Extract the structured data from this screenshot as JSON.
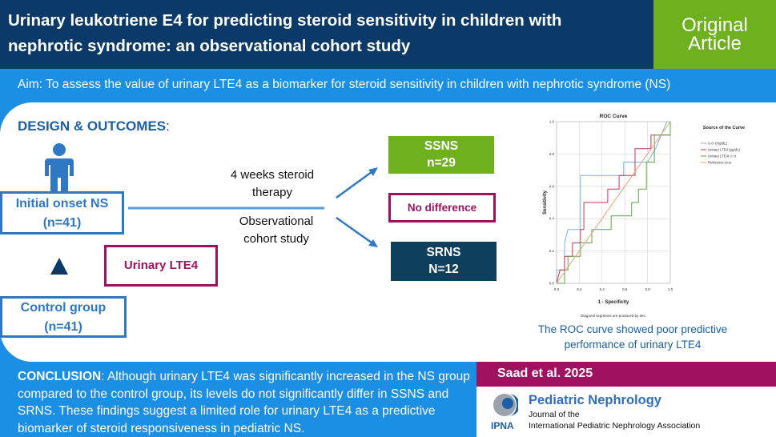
{
  "header": {
    "title": "Urinary leukotriene E4 for predicting steroid sensitivity in children with nephrotic syndrome: an observational cohort study",
    "badge_line1": "Original",
    "badge_line2": "Article"
  },
  "aim": "Aim: To assess the value of urinary LTE4 as a biomarker for steroid sensitivity in children with nephrotic syndrome (NS)",
  "design": {
    "heading": "DESIGN & OUTCOMES",
    "colon": ":",
    "ns_box": {
      "line1": "Initial onset NS",
      "line2": "(n=41)"
    },
    "control_box": {
      "line1": "Control group",
      "line2": "(n=41)"
    },
    "lte4_box": "Urinary LTE4",
    "arrow_top": {
      "line1": "4 weeks steroid",
      "line2": "therapy"
    },
    "arrow_bottom": {
      "line1": "Observational",
      "line2": "cohort study"
    },
    "ssns": {
      "line1": "SSNS",
      "line2": "n=29"
    },
    "no_diff": "No difference",
    "srns": {
      "line1": "SRNS",
      "line2": "N=12"
    }
  },
  "chart_caption": {
    "line1": "The ROC curve showed poor predictive",
    "line2": "performance of urinary LTE4"
  },
  "chart_data": {
    "type": "line",
    "title": "ROC Curve",
    "xlabel": "1 - Specificity",
    "ylabel": "Sensitivity",
    "xlim": [
      0,
      1
    ],
    "ylim": [
      0,
      1
    ],
    "ticks": [
      "0.0",
      "0.2",
      "0.4",
      "0.6",
      "0.8",
      "1.0"
    ],
    "grid": true,
    "legend_title": "Source of the Curve",
    "legend_position": "right",
    "footnote": "Diagonal segments are produced by ties.",
    "series": [
      {
        "name": "U cr (mg/dL)",
        "color": "#7fb0e0",
        "points": [
          [
            0,
            0
          ],
          [
            0,
            0.083
          ],
          [
            0.07,
            0.083
          ],
          [
            0.07,
            0.25
          ],
          [
            0.1,
            0.333
          ],
          [
            0.21,
            0.333
          ],
          [
            0.21,
            0.667
          ],
          [
            0.59,
            0.667
          ],
          [
            0.59,
            0.75
          ],
          [
            0.8,
            0.75
          ],
          [
            0.87,
            0.833
          ],
          [
            0.92,
            0.917
          ],
          [
            0.97,
            1
          ],
          [
            1,
            1
          ]
        ]
      },
      {
        "name": "Urinary LTE4 (pg/dL)",
        "color": "#c8325a",
        "points": [
          [
            0,
            0
          ],
          [
            0.03,
            0.083
          ],
          [
            0.07,
            0.083
          ],
          [
            0.07,
            0.167
          ],
          [
            0.14,
            0.167
          ],
          [
            0.14,
            0.25
          ],
          [
            0.21,
            0.25
          ],
          [
            0.21,
            0.333
          ],
          [
            0.24,
            0.333
          ],
          [
            0.24,
            0.5
          ],
          [
            0.45,
            0.5
          ],
          [
            0.45,
            0.583
          ],
          [
            0.55,
            0.583
          ],
          [
            0.55,
            0.667
          ],
          [
            0.69,
            0.667
          ],
          [
            0.69,
            0.833
          ],
          [
            0.83,
            0.833
          ],
          [
            0.83,
            0.917
          ],
          [
            1,
            0.917
          ],
          [
            1,
            1
          ]
        ]
      },
      {
        "name": "Urinary LTE4/ U cr",
        "color": "#5aa845",
        "points": [
          [
            0,
            0
          ],
          [
            0.07,
            0
          ],
          [
            0.07,
            0.083
          ],
          [
            0.1,
            0.083
          ],
          [
            0.1,
            0.167
          ],
          [
            0.21,
            0.167
          ],
          [
            0.21,
            0.25
          ],
          [
            0.31,
            0.25
          ],
          [
            0.31,
            0.333
          ],
          [
            0.48,
            0.333
          ],
          [
            0.48,
            0.417
          ],
          [
            0.66,
            0.417
          ],
          [
            0.66,
            0.5
          ],
          [
            0.72,
            0.5
          ],
          [
            0.72,
            0.583
          ],
          [
            0.79,
            0.583
          ],
          [
            0.79,
            0.75
          ],
          [
            0.86,
            0.75
          ],
          [
            0.86,
            0.917
          ],
          [
            1,
            0.917
          ],
          [
            1,
            1
          ]
        ]
      },
      {
        "name": "Reference Line",
        "color": "#f0a070",
        "points": [
          [
            0,
            0
          ],
          [
            1,
            1
          ]
        ]
      }
    ]
  },
  "conclusion": {
    "label": "CONCLUSION",
    "text": ": Although urinary LTE4 was significantly increased in the NS group compared to the control group, its levels do not significantly differ in SSNS and SRNS. These findings suggest a limited role for urinary LTE4 as a predictive biomarker of steroid responsiveness in pediatric NS."
  },
  "citation": "Saad et al. 2025",
  "journal": {
    "name": "Pediatric Nephrology",
    "sub1": "Journal of the",
    "sub2": "International Pediatric Nephrology Association",
    "logo_text": "IPNA"
  },
  "colors": {
    "navy": "#0b3a68",
    "blue": "#1a8fe3",
    "green": "#6fb01f",
    "magenta": "#a0125f",
    "teal": "#0e3f5c"
  }
}
